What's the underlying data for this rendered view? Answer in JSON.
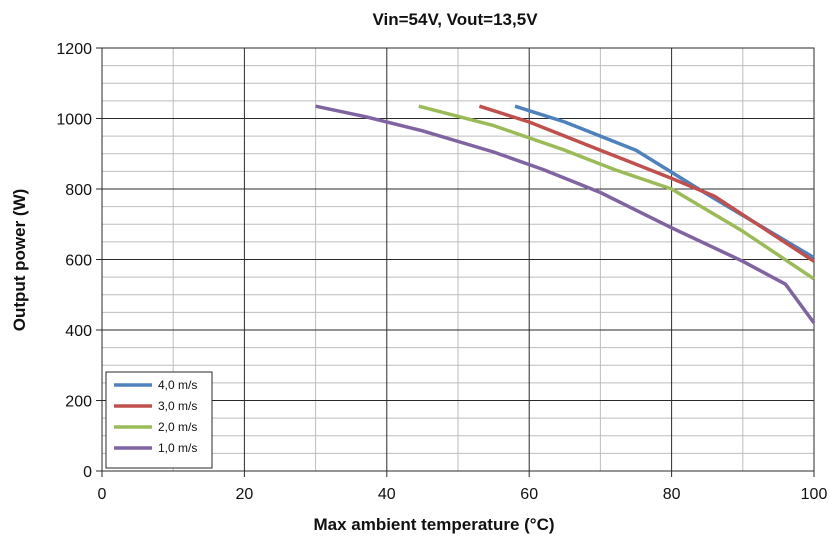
{
  "chart_data": {
    "type": "line",
    "title": "Vin=54V, Vout=13,5V",
    "xlabel": "Max ambient temperature (°C)",
    "ylabel": "Output power (W)",
    "xlim": [
      0,
      100
    ],
    "ylim": [
      0,
      1200
    ],
    "x_ticks": [
      0,
      20,
      40,
      60,
      80,
      100
    ],
    "y_ticks": [
      0,
      200,
      400,
      600,
      800,
      1000,
      1200
    ],
    "x_tick_labels": [
      "0",
      "20",
      "40",
      "60",
      "80",
      "100"
    ],
    "y_tick_labels": [
      "0",
      "200",
      "400",
      "600",
      "800",
      "1000",
      "1200"
    ],
    "x_minor_step": 10,
    "y_minor_step": 50,
    "grid": true,
    "legend_position": "bottom-left",
    "series": [
      {
        "name": "4,0 m/s",
        "color": "#4f81bd",
        "x": [
          58,
          65,
          75,
          85,
          100
        ],
        "y": [
          1035,
          990,
          910,
          785,
          605
        ]
      },
      {
        "name": "3,0 m/s",
        "color": "#c0504d",
        "x": [
          53,
          60,
          70,
          80,
          86,
          100
        ],
        "y": [
          1035,
          990,
          910,
          830,
          780,
          595
        ]
      },
      {
        "name": "2,0 m/s",
        "color": "#9bbb59",
        "x": [
          44.5,
          55,
          65,
          72,
          80,
          90,
          100
        ],
        "y": [
          1035,
          980,
          910,
          855,
          800,
          680,
          545
        ]
      },
      {
        "name": "1,0 m/s",
        "color": "#8064a2",
        "x": [
          30,
          37,
          45,
          55,
          62,
          70,
          80,
          90,
          96,
          100
        ],
        "y": [
          1035,
          1005,
          965,
          905,
          855,
          790,
          690,
          595,
          530,
          420
        ]
      }
    ]
  }
}
